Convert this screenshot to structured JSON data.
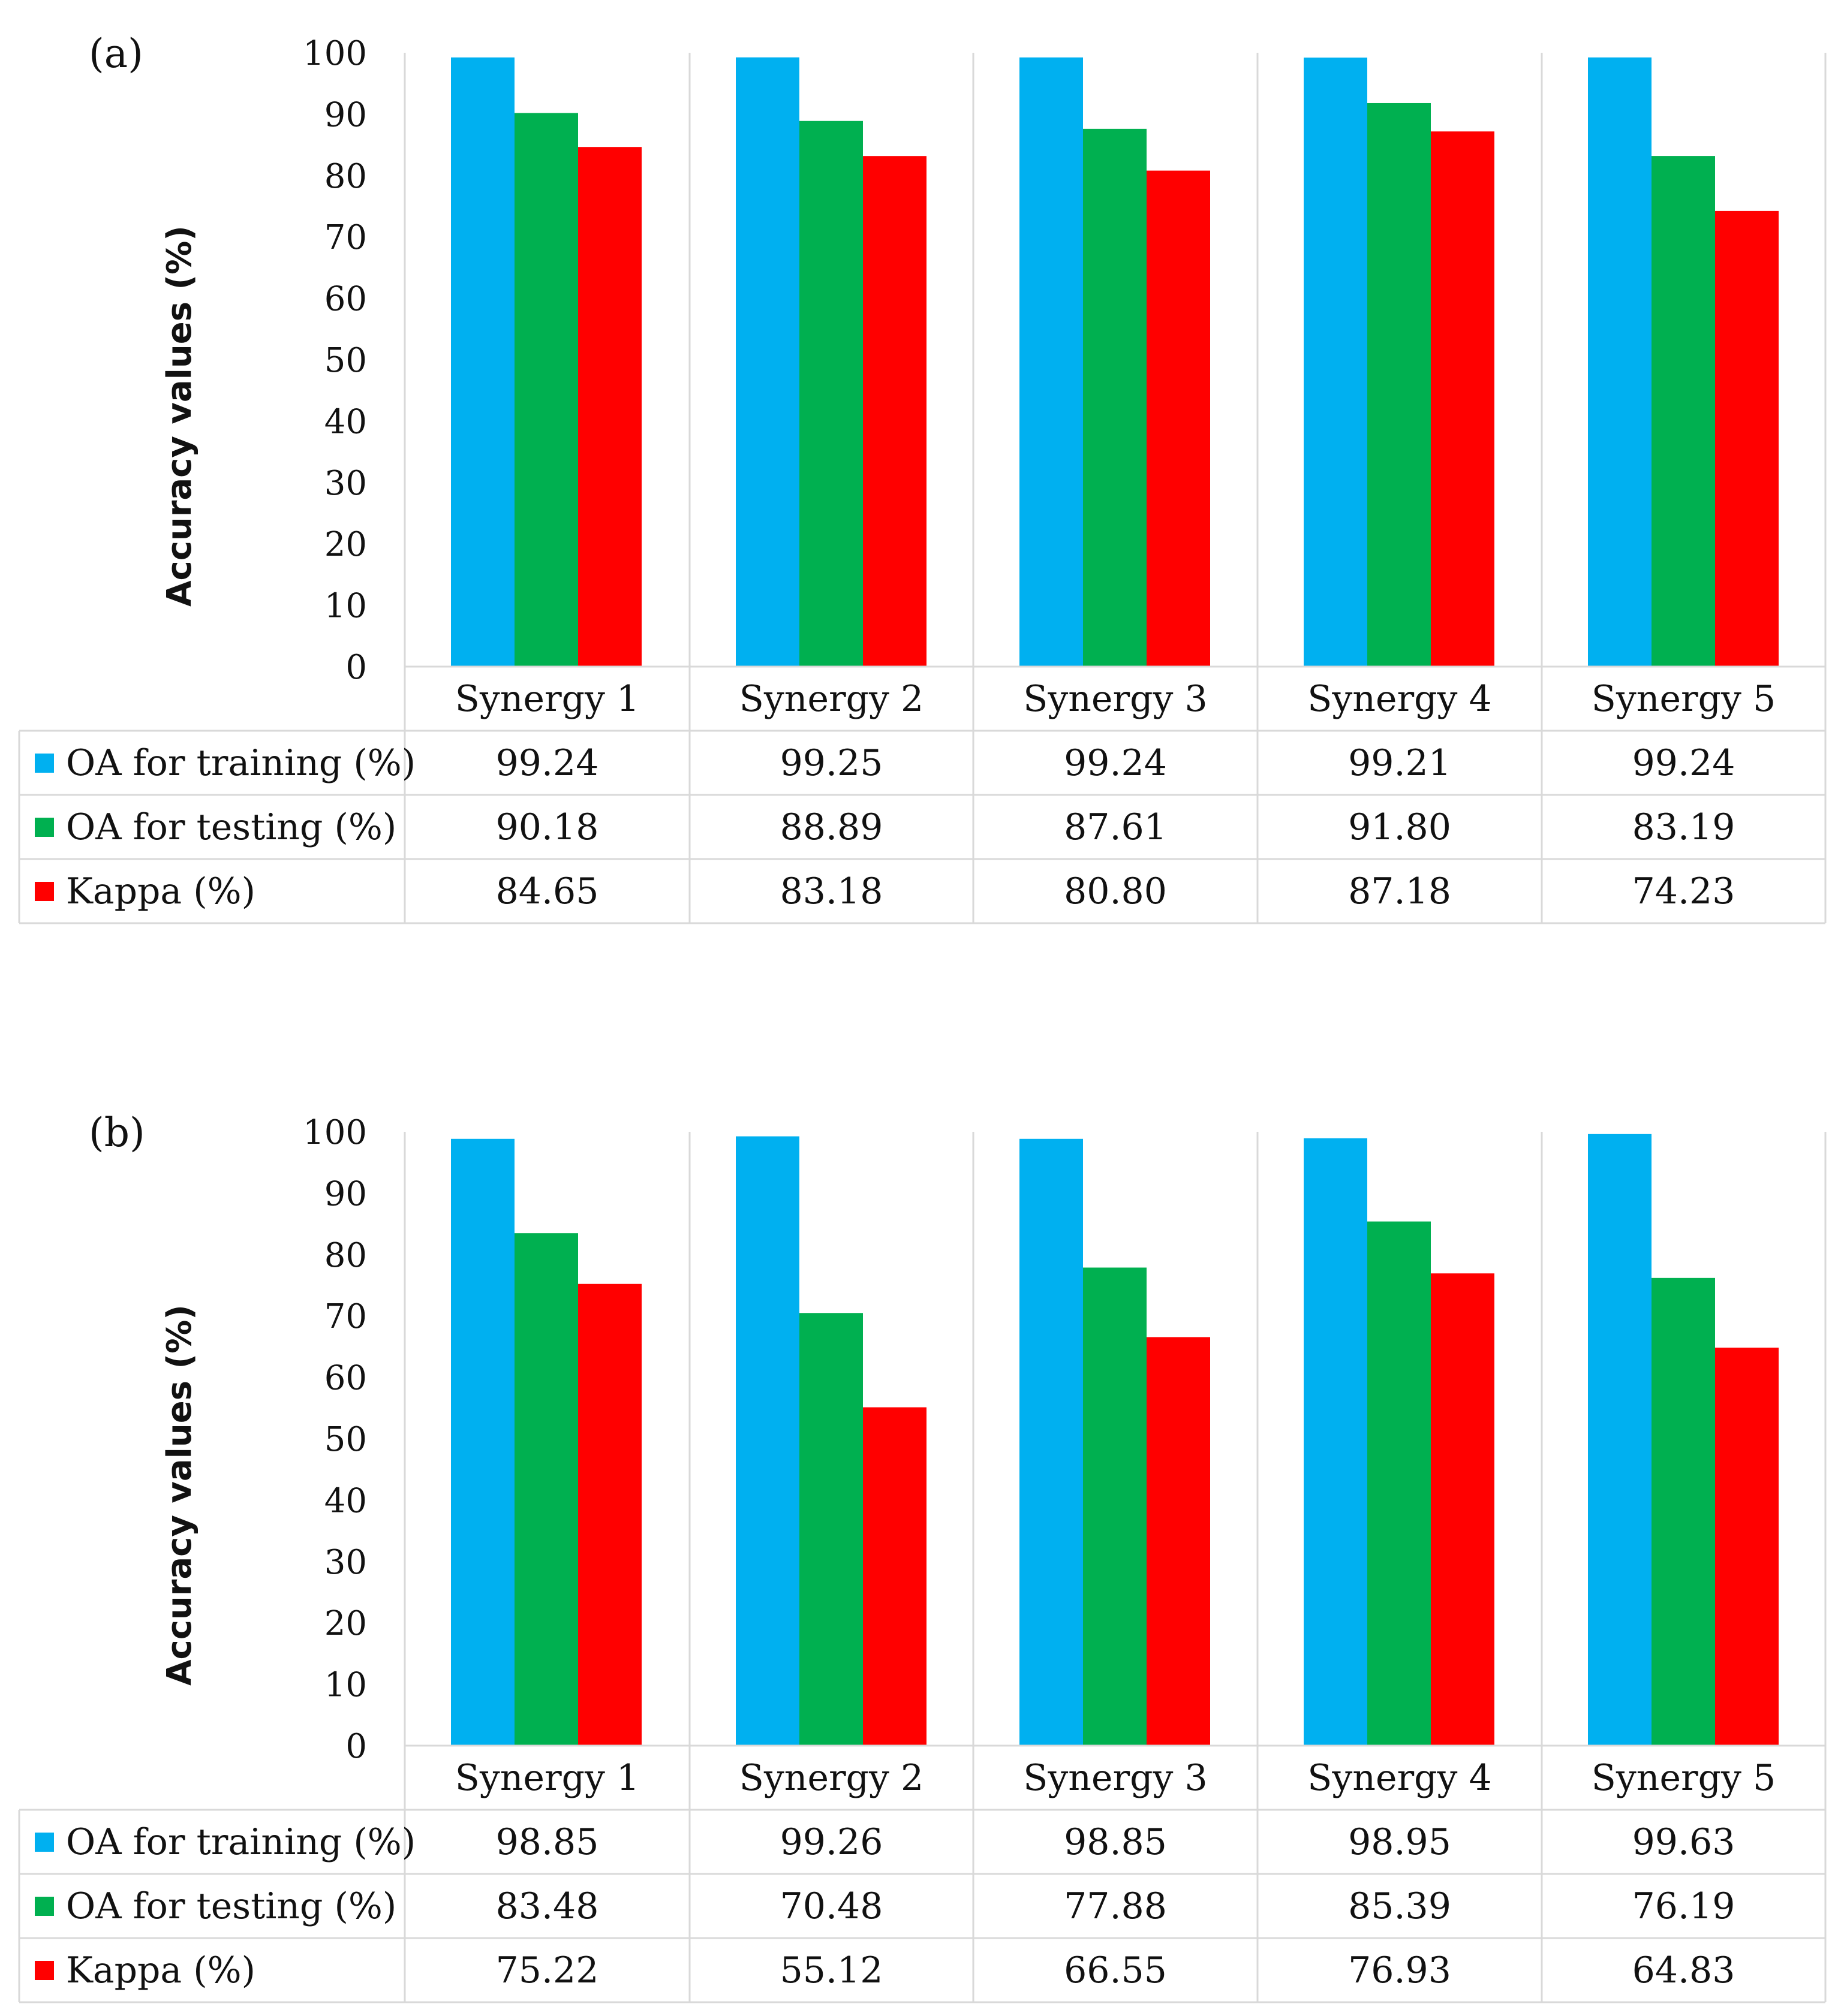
{
  "chart_data": [
    {
      "type": "bar",
      "panel_label": "(a)",
      "ylabel": "Accuracy values (%)",
      "ylim": [
        0,
        100
      ],
      "y_ticks": [
        "0",
        "10",
        "20",
        "30",
        "40",
        "50",
        "60",
        "70",
        "80",
        "90",
        "100"
      ],
      "categories": [
        "Synergy 1",
        "Synergy 2",
        "Synergy 3",
        "Synergy 4",
        "Synergy 5"
      ],
      "series": [
        {
          "name": "OA for training (%)",
          "color": "#00b0f0",
          "values": [
            99.24,
            99.25,
            99.24,
            99.21,
            99.24
          ],
          "labels": [
            "99.24",
            "99.25",
            "99.24",
            "99.21",
            "99.24"
          ]
        },
        {
          "name": "OA for testing (%)",
          "color": "#00b050",
          "values": [
            90.18,
            88.89,
            87.61,
            91.8,
            83.19
          ],
          "labels": [
            "90.18",
            "88.89",
            "87.61",
            "91.80",
            "83.19"
          ]
        },
        {
          "name": "Kappa (%)",
          "color": "#ff0000",
          "values": [
            84.65,
            83.18,
            80.8,
            87.18,
            74.23
          ],
          "labels": [
            "84.65",
            "83.18",
            "80.80",
            "87.18",
            "74.23"
          ]
        }
      ]
    },
    {
      "type": "bar",
      "panel_label": "(b)",
      "ylabel": "Accuracy values (%)",
      "ylim": [
        0,
        100
      ],
      "y_ticks": [
        "0",
        "10",
        "20",
        "30",
        "40",
        "50",
        "60",
        "70",
        "80",
        "90",
        "100"
      ],
      "categories": [
        "Synergy 1",
        "Synergy 2",
        "Synergy 3",
        "Synergy 4",
        "Synergy 5"
      ],
      "series": [
        {
          "name": "OA for training (%)",
          "color": "#00b0f0",
          "values": [
            98.85,
            99.26,
            98.85,
            98.95,
            99.63
          ],
          "labels": [
            "98.85",
            "99.26",
            "98.85",
            "98.95",
            "99.63"
          ]
        },
        {
          "name": "OA for testing (%)",
          "color": "#00b050",
          "values": [
            83.48,
            70.48,
            77.88,
            85.39,
            76.19
          ],
          "labels": [
            "83.48",
            "70.48",
            "77.88",
            "85.39",
            "76.19"
          ]
        },
        {
          "name": "Kappa (%)",
          "color": "#ff0000",
          "values": [
            75.22,
            55.12,
            66.55,
            76.93,
            64.83
          ],
          "labels": [
            "75.22",
            "55.12",
            "66.55",
            "76.93",
            "64.83"
          ]
        }
      ]
    }
  ]
}
